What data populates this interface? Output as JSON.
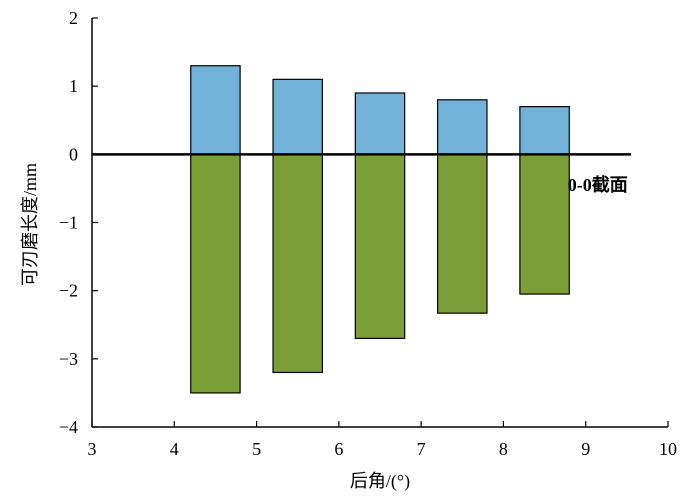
{
  "chart_data": {
    "type": "bar",
    "title": "",
    "xlabel": "后角/(°)",
    "ylabel": "可刃磨长度/mm",
    "xlim": [
      3,
      10
    ],
    "ylim": [
      -4,
      2
    ],
    "xticks": [
      "3",
      "4",
      "5",
      "6",
      "7",
      "8",
      "9",
      "10"
    ],
    "yticks": [
      "2",
      "1",
      "0",
      "−1",
      "−2",
      "−3",
      "−4"
    ],
    "grid": false,
    "legend": "none",
    "annotations": [
      {
        "text": "0-0截面",
        "x": 9.0,
        "y": -0.45
      }
    ],
    "bar_span": 0.6,
    "x": [
      4.5,
      5.5,
      6.5,
      7.5,
      8.5
    ],
    "series": [
      {
        "values": [
          1.3,
          1.1,
          0.9,
          0.8,
          0.7
        ],
        "color": "#72b1d8"
      },
      {
        "values": [
          -3.5,
          -3.2,
          -2.7,
          -2.33,
          -2.05
        ],
        "color": "#7b9e38"
      }
    ]
  }
}
